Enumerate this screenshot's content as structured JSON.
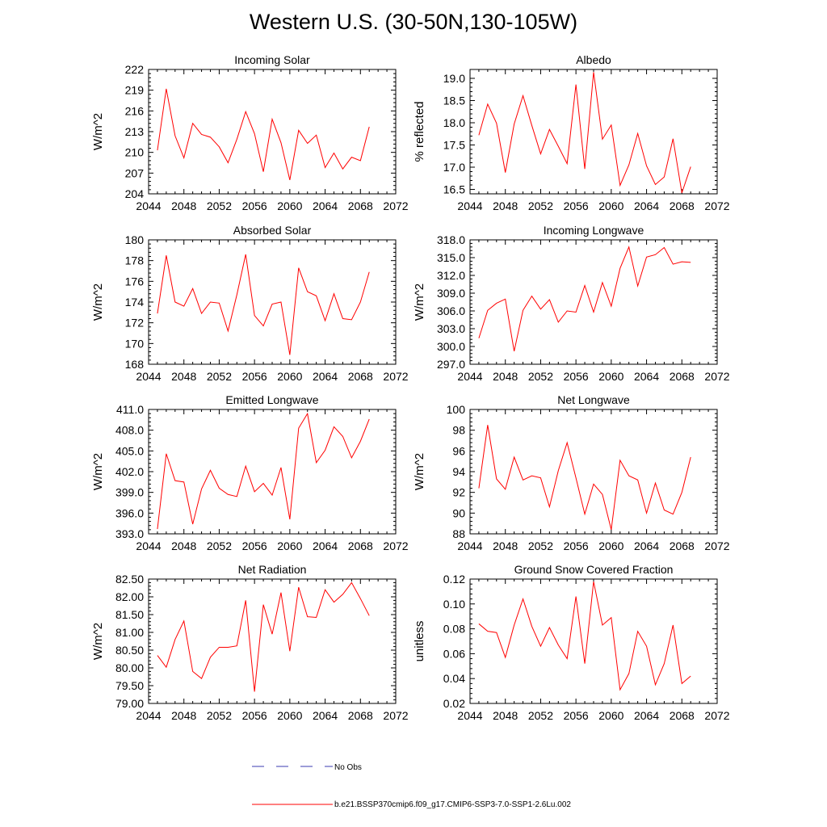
{
  "page": {
    "title": "Western U.S. (30-50N,130-105W)"
  },
  "legend": {
    "entries": [
      {
        "label": "No Obs",
        "style": "dashed",
        "color": "#3b3bb0"
      },
      {
        "label": "b.e21.BSSP370cmip6.f09_g17.CMIP6-SSP3-7.0-SSP1-2.6Lu.002",
        "style": "solid",
        "color": "#ff0000"
      }
    ]
  },
  "chart_data": [
    {
      "type": "line",
      "title": "Incoming Solar",
      "ylabel": "W/m^2",
      "xlabel": "",
      "xlim": [
        2044,
        2072
      ],
      "ylim": [
        204,
        222
      ],
      "xticks": [
        2044,
        2048,
        2052,
        2056,
        2060,
        2064,
        2068,
        2072
      ],
      "xtick_labels": [
        "2044",
        "2048",
        "2052",
        "2056",
        "2060",
        "2064",
        "2068",
        "2072"
      ],
      "yticks": [
        204,
        207,
        210,
        213,
        216,
        219,
        222
      ],
      "ytick_labels": [
        "204",
        "207",
        "210",
        "213",
        "216",
        "219",
        "222"
      ],
      "x": [
        2045,
        2046,
        2047,
        2048,
        2049,
        2050,
        2051,
        2052,
        2053,
        2054,
        2055,
        2056,
        2057,
        2058,
        2059,
        2060,
        2061,
        2062,
        2063,
        2064,
        2065,
        2066,
        2067,
        2068,
        2069
      ],
      "series": [
        {
          "color": "#ff0000",
          "values": [
            210.3,
            219.2,
            212.4,
            209.2,
            214.2,
            212.6,
            212.2,
            210.8,
            208.5,
            211.9,
            215.9,
            212.7,
            207.2,
            214.8,
            211.4,
            206.0,
            213.2,
            211.3,
            212.5,
            207.8,
            209.9,
            207.6,
            209.3,
            208.8,
            213.7
          ]
        }
      ]
    },
    {
      "type": "line",
      "title": "Albedo",
      "ylabel": "% reflected",
      "xlabel": "",
      "xlim": [
        2044,
        2072
      ],
      "ylim": [
        16.4,
        19.2
      ],
      "xticks": [
        2044,
        2048,
        2052,
        2056,
        2060,
        2064,
        2068,
        2072
      ],
      "xtick_labels": [
        "2044",
        "2048",
        "2052",
        "2056",
        "2060",
        "2064",
        "2068",
        "2072"
      ],
      "yticks": [
        16.5,
        17.0,
        17.5,
        18.0,
        18.5,
        19.0
      ],
      "ytick_labels": [
        "16.5",
        "17.0",
        "17.5",
        "18.0",
        "18.5",
        "19.0"
      ],
      "x": [
        2045,
        2046,
        2047,
        2048,
        2049,
        2050,
        2051,
        2052,
        2053,
        2054,
        2055,
        2056,
        2057,
        2058,
        2059,
        2060,
        2061,
        2062,
        2063,
        2064,
        2065,
        2066,
        2067,
        2068,
        2069
      ],
      "series": [
        {
          "color": "#ff0000",
          "values": [
            17.72,
            18.42,
            17.99,
            16.88,
            17.97,
            18.61,
            17.94,
            17.3,
            17.85,
            17.47,
            17.08,
            18.86,
            16.96,
            19.14,
            17.63,
            17.95,
            16.59,
            17.05,
            17.76,
            17.03,
            16.61,
            16.78,
            17.64,
            16.42,
            17.01
          ]
        }
      ]
    },
    {
      "type": "line",
      "title": "Absorbed Solar",
      "ylabel": "W/m^2",
      "xlabel": "",
      "xlim": [
        2044,
        2072
      ],
      "ylim": [
        168,
        180
      ],
      "xticks": [
        2044,
        2048,
        2052,
        2056,
        2060,
        2064,
        2068,
        2072
      ],
      "xtick_labels": [
        "2044",
        "2048",
        "2052",
        "2056",
        "2060",
        "2064",
        "2068",
        "2072"
      ],
      "yticks": [
        168,
        170,
        172,
        174,
        176,
        178,
        180
      ],
      "ytick_labels": [
        "168",
        "170",
        "172",
        "174",
        "176",
        "178",
        "180"
      ],
      "x": [
        2045,
        2046,
        2047,
        2048,
        2049,
        2050,
        2051,
        2052,
        2053,
        2054,
        2055,
        2056,
        2057,
        2058,
        2059,
        2060,
        2061,
        2062,
        2063,
        2064,
        2065,
        2066,
        2067,
        2068,
        2069
      ],
      "series": [
        {
          "color": "#ff0000",
          "values": [
            172.9,
            178.5,
            174.0,
            173.6,
            175.3,
            172.9,
            174.0,
            173.9,
            171.2,
            174.7,
            178.6,
            172.7,
            171.7,
            173.8,
            174.0,
            168.9,
            177.3,
            175.0,
            174.6,
            172.2,
            174.8,
            172.4,
            172.3,
            174.0,
            176.9
          ]
        }
      ]
    },
    {
      "type": "line",
      "title": "Incoming Longwave",
      "ylabel": "W/m^2",
      "xlabel": "",
      "xlim": [
        2044,
        2072
      ],
      "ylim": [
        297.0,
        318.0
      ],
      "xticks": [
        2044,
        2048,
        2052,
        2056,
        2060,
        2064,
        2068,
        2072
      ],
      "xtick_labels": [
        "2044",
        "2048",
        "2052",
        "2056",
        "2060",
        "2064",
        "2068",
        "2072"
      ],
      "yticks": [
        297.0,
        300.0,
        303.0,
        306.0,
        309.0,
        312.0,
        315.0,
        318.0
      ],
      "ytick_labels": [
        "297.0",
        "300.0",
        "303.0",
        "306.0",
        "309.0",
        "312.0",
        "315.0",
        "318.0"
      ],
      "x": [
        2045,
        2046,
        2047,
        2048,
        2049,
        2050,
        2051,
        2052,
        2053,
        2054,
        2055,
        2056,
        2057,
        2058,
        2059,
        2060,
        2061,
        2062,
        2063,
        2064,
        2065,
        2066,
        2067,
        2068,
        2069
      ],
      "series": [
        {
          "color": "#ff0000",
          "values": [
            301.4,
            306.1,
            307.3,
            308.0,
            299.2,
            306.1,
            308.5,
            306.3,
            307.9,
            304.1,
            306.0,
            305.8,
            310.3,
            305.8,
            310.8,
            306.8,
            313.2,
            316.8,
            310.2,
            315.1,
            315.5,
            316.7,
            313.9,
            314.3,
            314.2
          ]
        }
      ]
    },
    {
      "type": "line",
      "title": "Emitted Longwave",
      "ylabel": "W/m^2",
      "xlabel": "",
      "xlim": [
        2044,
        2072
      ],
      "ylim": [
        393.0,
        411.0
      ],
      "xticks": [
        2044,
        2048,
        2052,
        2056,
        2060,
        2064,
        2068,
        2072
      ],
      "xtick_labels": [
        "2044",
        "2048",
        "2052",
        "2056",
        "2060",
        "2064",
        "2068",
        "2072"
      ],
      "yticks": [
        393.0,
        396.0,
        399.0,
        402.0,
        405.0,
        408.0,
        411.0
      ],
      "ytick_labels": [
        "393.0",
        "396.0",
        "399.0",
        "402.0",
        "405.0",
        "408.0",
        "411.0"
      ],
      "x": [
        2045,
        2046,
        2047,
        2048,
        2049,
        2050,
        2051,
        2052,
        2053,
        2054,
        2055,
        2056,
        2057,
        2058,
        2059,
        2060,
        2061,
        2062,
        2063,
        2064,
        2065,
        2066,
        2067,
        2068,
        2069
      ],
      "series": [
        {
          "color": "#ff0000",
          "values": [
            393.7,
            404.6,
            400.7,
            400.5,
            394.4,
            399.5,
            402.2,
            399.6,
            398.7,
            398.4,
            402.8,
            399.1,
            400.3,
            398.6,
            402.6,
            395.1,
            408.3,
            410.4,
            403.3,
            405.1,
            408.5,
            407.1,
            404.0,
            406.4,
            409.6
          ]
        }
      ]
    },
    {
      "type": "line",
      "title": "Net Longwave",
      "ylabel": "W/m^2",
      "xlabel": "",
      "xlim": [
        2044,
        2072
      ],
      "ylim": [
        88,
        100
      ],
      "xticks": [
        2044,
        2048,
        2052,
        2056,
        2060,
        2064,
        2068,
        2072
      ],
      "xtick_labels": [
        "2044",
        "2048",
        "2052",
        "2056",
        "2060",
        "2064",
        "2068",
        "2072"
      ],
      "yticks": [
        88,
        90,
        92,
        94,
        96,
        98,
        100
      ],
      "ytick_labels": [
        "88",
        "90",
        "92",
        "94",
        "96",
        "98",
        "100"
      ],
      "x": [
        2045,
        2046,
        2047,
        2048,
        2049,
        2050,
        2051,
        2052,
        2053,
        2054,
        2055,
        2056,
        2057,
        2058,
        2059,
        2060,
        2061,
        2062,
        2063,
        2064,
        2065,
        2066,
        2067,
        2068,
        2069
      ],
      "series": [
        {
          "color": "#ff0000",
          "values": [
            92.4,
            98.5,
            93.3,
            92.3,
            95.4,
            93.2,
            93.6,
            93.4,
            90.6,
            94.1,
            96.8,
            93.4,
            89.9,
            92.8,
            91.8,
            88.4,
            95.1,
            93.6,
            93.2,
            90.0,
            92.9,
            90.3,
            89.9,
            92.0,
            95.4
          ]
        }
      ]
    },
    {
      "type": "line",
      "title": "Net Radiation",
      "ylabel": "W/m^2",
      "xlabel": "",
      "xlim": [
        2044,
        2072
      ],
      "ylim": [
        79.0,
        82.5
      ],
      "xticks": [
        2044,
        2048,
        2052,
        2056,
        2060,
        2064,
        2068,
        2072
      ],
      "xtick_labels": [
        "2044",
        "2048",
        "2052",
        "2056",
        "2060",
        "2064",
        "2068",
        "2072"
      ],
      "yticks": [
        79.0,
        79.5,
        80.0,
        80.5,
        81.0,
        81.5,
        82.0,
        82.5
      ],
      "ytick_labels": [
        "79.00",
        "79.50",
        "80.00",
        "80.50",
        "81.00",
        "81.50",
        "82.00",
        "82.50"
      ],
      "x": [
        2045,
        2046,
        2047,
        2048,
        2049,
        2050,
        2051,
        2052,
        2053,
        2054,
        2055,
        2056,
        2057,
        2058,
        2059,
        2060,
        2061,
        2062,
        2063,
        2064,
        2065,
        2066,
        2067,
        2068,
        2069
      ],
      "series": [
        {
          "color": "#ff0000",
          "values": [
            80.35,
            80.02,
            80.8,
            81.32,
            79.9,
            79.7,
            80.3,
            80.58,
            80.58,
            80.62,
            81.9,
            79.33,
            81.78,
            80.95,
            82.12,
            80.47,
            82.27,
            81.44,
            81.42,
            82.2,
            81.85,
            82.07,
            82.4,
            81.95,
            81.47
          ]
        }
      ]
    },
    {
      "type": "line",
      "title": "Ground Snow Covered Fraction",
      "ylabel": "unitless",
      "xlabel": "",
      "xlim": [
        2044,
        2072
      ],
      "ylim": [
        0.02,
        0.12
      ],
      "xticks": [
        2044,
        2048,
        2052,
        2056,
        2060,
        2064,
        2068,
        2072
      ],
      "xtick_labels": [
        "2044",
        "2048",
        "2052",
        "2056",
        "2060",
        "2064",
        "2068",
        "2072"
      ],
      "yticks": [
        0.02,
        0.04,
        0.06,
        0.08,
        0.1,
        0.12
      ],
      "ytick_labels": [
        "0.02",
        "0.04",
        "0.06",
        "0.08",
        "0.10",
        "0.12"
      ],
      "x": [
        2045,
        2046,
        2047,
        2048,
        2049,
        2050,
        2051,
        2052,
        2053,
        2054,
        2055,
        2056,
        2057,
        2058,
        2059,
        2060,
        2061,
        2062,
        2063,
        2064,
        2065,
        2066,
        2067,
        2068,
        2069
      ],
      "series": [
        {
          "color": "#ff0000",
          "values": [
            0.084,
            0.078,
            0.077,
            0.057,
            0.083,
            0.104,
            0.082,
            0.066,
            0.081,
            0.067,
            0.056,
            0.106,
            0.052,
            0.118,
            0.083,
            0.089,
            0.031,
            0.044,
            0.078,
            0.066,
            0.035,
            0.052,
            0.083,
            0.036,
            0.042
          ]
        }
      ]
    }
  ]
}
